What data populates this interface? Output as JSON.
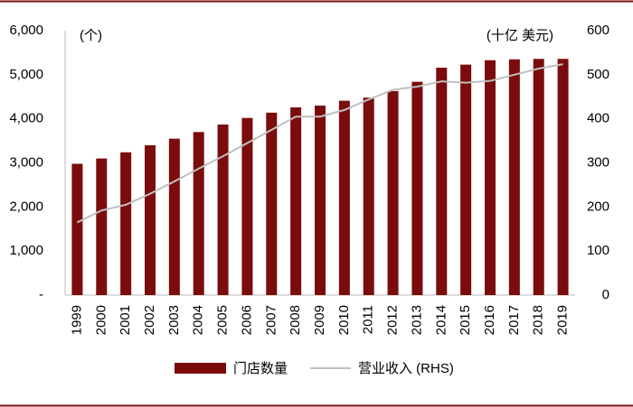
{
  "chart_data": {
    "type": "bar-line",
    "y_unit_label": "(个)",
    "y2_unit_label": "(十亿 美元)",
    "categories": [
      "1999",
      "2000",
      "2001",
      "2002",
      "2003",
      "2004",
      "2005",
      "2006",
      "2007",
      "2008",
      "2009",
      "2010",
      "2011",
      "2012",
      "2013",
      "2014",
      "2015",
      "2016",
      "2017",
      "2018",
      "2019"
    ],
    "series": [
      {
        "name": "门店数量",
        "type": "bar",
        "color": "#7b0c0c",
        "values": [
          2980,
          3100,
          3240,
          3400,
          3550,
          3700,
          3870,
          4020,
          4140,
          4260,
          4300,
          4410,
          4480,
          4630,
          4840,
          5160,
          5230,
          5330,
          5350,
          5360,
          5360
        ]
      },
      {
        "name": "营业收入 (RHS)",
        "type": "line",
        "color": "#bfbfbf",
        "axis": "y2",
        "values": [
          165,
          192,
          205,
          230,
          258,
          287,
          315,
          345,
          375,
          405,
          405,
          420,
          444,
          466,
          473,
          485,
          482,
          486,
          500,
          514,
          524
        ]
      }
    ],
    "ylim": [
      0,
      6000
    ],
    "yticks": [
      {
        "value": 0,
        "label": "-"
      },
      {
        "value": 1000,
        "label": "1,000"
      },
      {
        "value": 2000,
        "label": "2,000"
      },
      {
        "value": 3000,
        "label": "3,000"
      },
      {
        "value": 4000,
        "label": "4,000"
      },
      {
        "value": 5000,
        "label": "5,000"
      },
      {
        "value": 6000,
        "label": "6,000"
      }
    ],
    "y2lim": [
      0,
      600
    ],
    "y2ticks": [
      0,
      100,
      200,
      300,
      400,
      500,
      600
    ],
    "grid": false
  }
}
